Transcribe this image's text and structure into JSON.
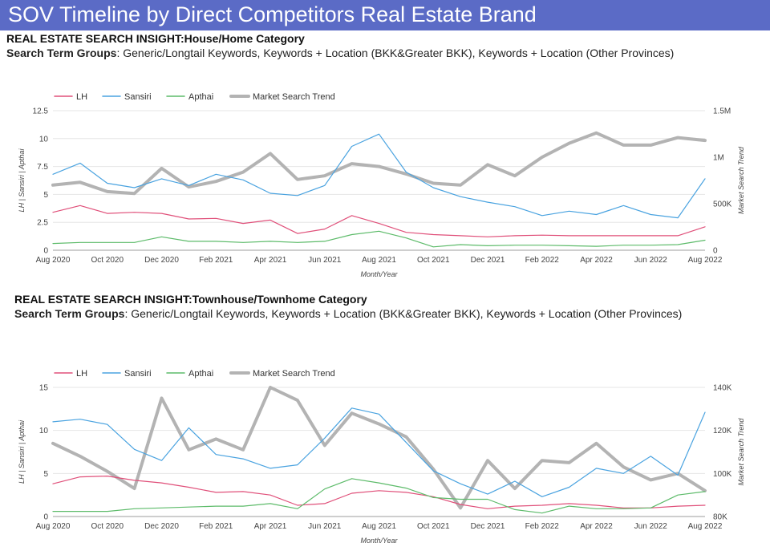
{
  "title": "SOV Timeline by Direct Competitors Real Estate Brand",
  "section1": {
    "heading": "REAL ESTATE SEARCH INSIGHT:House/Home Category",
    "groups_label": "Search Term Groups",
    "groups_text": ": Generic/Longtail Keywords, Keywords + Location (BKK&Greater BKK), Keywords + Location (Other Provinces)"
  },
  "section2": {
    "heading": "REAL ESTATE SEARCH INSIGHT:Townhouse/Townhome Category",
    "groups_label": "Search Term Groups",
    "groups_text": ": Generic/Longtail Keywords, Keywords + Location (BKK&Greater BKK), Keywords + Location (Other Provinces)"
  },
  "colors": {
    "banner": "#5b6bc6",
    "LH": "#e0507a",
    "Sansiri": "#4aa3e0",
    "Apthai": "#5dbb6a",
    "Market": "#b3b3b3"
  },
  "chart_data": [
    {
      "type": "line",
      "name": "house",
      "categories": [
        "Aug 2020",
        "Sep 2020",
        "Oct 2020",
        "Nov 2020",
        "Dec 2020",
        "Jan 2021",
        "Feb 2021",
        "Mar 2021",
        "Apr 2021",
        "May 2021",
        "Jun 2021",
        "Jul 2021",
        "Aug 2021",
        "Sep 2021",
        "Oct 2021",
        "Nov 2021",
        "Dec 2021",
        "Jan 2022",
        "Feb 2022",
        "Mar 2022",
        "Apr 2022",
        "May 2022",
        "Jun 2022",
        "Jul 2022",
        "Aug 2022"
      ],
      "tick_labels": [
        "Aug 2020",
        "Oct 2020",
        "Dec 2020",
        "Feb 2021",
        "Apr 2021",
        "Jun 2021",
        "Aug 2021",
        "Oct 2021",
        "Dec 2021",
        "Feb 2022",
        "Apr 2022",
        "Jun 2022",
        "Aug 2022"
      ],
      "xlabel": "Month/Year",
      "ylabel": "LH | Sansiri | Apthai",
      "y2label": "Market Search Trend",
      "ylim": [
        0,
        12.5
      ],
      "yticks": [
        0,
        2.5,
        5,
        7.5,
        10,
        12.5
      ],
      "ytick_labels": [
        "0",
        "2.5",
        "5",
        "7.5",
        "10",
        "12.5"
      ],
      "y2lim": [
        0,
        1500000
      ],
      "y2ticks": [
        0,
        500000,
        1000000,
        1500000
      ],
      "y2tick_labels": [
        "0",
        "500K",
        "1M",
        "1.5M"
      ],
      "series": [
        {
          "name": "LH",
          "color": "#e0507a",
          "axis": "left",
          "values": [
            3.4,
            4.0,
            3.3,
            3.4,
            3.3,
            2.8,
            2.85,
            2.4,
            2.7,
            1.5,
            1.9,
            3.1,
            2.4,
            1.6,
            1.4,
            1.3,
            1.2,
            1.3,
            1.35,
            1.3,
            1.3,
            1.3,
            1.3,
            1.3,
            2.1
          ]
        },
        {
          "name": "Sansiri",
          "color": "#4aa3e0",
          "axis": "left",
          "values": [
            6.8,
            7.8,
            6.0,
            5.6,
            6.4,
            5.8,
            6.8,
            6.3,
            5.1,
            4.9,
            5.8,
            9.3,
            10.4,
            7.0,
            5.6,
            4.8,
            4.3,
            3.9,
            3.1,
            3.5,
            3.2,
            4.0,
            3.2,
            2.9,
            6.4
          ]
        },
        {
          "name": "Apthai",
          "color": "#5dbb6a",
          "axis": "left",
          "values": [
            0.6,
            0.7,
            0.7,
            0.7,
            1.2,
            0.8,
            0.8,
            0.7,
            0.8,
            0.7,
            0.8,
            1.4,
            1.7,
            1.1,
            0.3,
            0.5,
            0.4,
            0.45,
            0.45,
            0.4,
            0.35,
            0.45,
            0.45,
            0.5,
            0.9
          ]
        },
        {
          "name": "Market Search Trend",
          "color": "#b3b3b3",
          "axis": "right",
          "values": [
            700000,
            730000,
            630000,
            610000,
            880000,
            680000,
            740000,
            840000,
            1040000,
            760000,
            800000,
            930000,
            900000,
            820000,
            720000,
            700000,
            920000,
            800000,
            1000000,
            1150000,
            1260000,
            1130000,
            1130000,
            1210000,
            1180000
          ]
        }
      ]
    },
    {
      "type": "line",
      "name": "townhouse",
      "categories": [
        "Aug 2020",
        "Sep 2020",
        "Oct 2020",
        "Nov 2020",
        "Dec 2020",
        "Jan 2021",
        "Feb 2021",
        "Mar 2021",
        "Apr 2021",
        "May 2021",
        "Jun 2021",
        "Jul 2021",
        "Aug 2021",
        "Sep 2021",
        "Oct 2021",
        "Nov 2021",
        "Dec 2021",
        "Jan 2022",
        "Feb 2022",
        "Mar 2022",
        "Apr 2022",
        "May 2022",
        "Jun 2022",
        "Jul 2022",
        "Aug 2022"
      ],
      "tick_labels": [
        "Aug 2020",
        "Oct 2020",
        "Dec 2020",
        "Feb 2021",
        "Apr 2021",
        "Jun 2021",
        "Aug 2021",
        "Oct 2021",
        "Dec 2021",
        "Feb 2022",
        "Apr 2022",
        "Jun 2022",
        "Aug 2022"
      ],
      "xlabel": "Month/Year",
      "ylabel": "LH | Sansiri | Apthai",
      "y2label": "Market Search Trend",
      "ylim": [
        0,
        15
      ],
      "yticks": [
        0,
        5,
        10,
        15
      ],
      "ytick_labels": [
        "0",
        "5",
        "10",
        "15"
      ],
      "y2lim": [
        80000,
        140000
      ],
      "y2ticks": [
        80000,
        100000,
        120000,
        140000
      ],
      "y2tick_labels": [
        "80K",
        "100K",
        "120K",
        "140K"
      ],
      "series": [
        {
          "name": "LH",
          "color": "#e0507a",
          "axis": "left",
          "values": [
            3.8,
            4.6,
            4.7,
            4.2,
            3.9,
            3.4,
            2.8,
            2.9,
            2.5,
            1.3,
            1.5,
            2.7,
            3.0,
            2.8,
            2.3,
            1.4,
            0.9,
            1.2,
            1.3,
            1.5,
            1.3,
            1.0,
            1.0,
            1.2,
            1.3
          ]
        },
        {
          "name": "Sansiri",
          "color": "#4aa3e0",
          "axis": "left",
          "values": [
            11.0,
            11.3,
            10.7,
            7.8,
            6.5,
            10.3,
            7.2,
            6.7,
            5.6,
            6.0,
            9.1,
            12.6,
            11.9,
            8.6,
            5.3,
            3.8,
            2.6,
            4.1,
            2.3,
            3.4,
            5.6,
            5.0,
            7.0,
            4.8,
            12.1
          ]
        },
        {
          "name": "Apthai",
          "color": "#5dbb6a",
          "axis": "left",
          "values": [
            0.6,
            0.6,
            0.6,
            0.9,
            1.0,
            1.1,
            1.2,
            1.2,
            1.5,
            0.9,
            3.2,
            4.4,
            3.9,
            3.3,
            2.2,
            2.0,
            2.0,
            0.8,
            0.4,
            1.2,
            0.9,
            0.9,
            1.0,
            2.5,
            2.9
          ]
        },
        {
          "name": "Market Search Trend",
          "color": "#b3b3b3",
          "axis": "right",
          "values": [
            114000,
            108000,
            101000,
            93000,
            135000,
            111000,
            116000,
            111000,
            140000,
            134000,
            113000,
            128000,
            123000,
            117000,
            102000,
            84000,
            106000,
            93000,
            106000,
            105000,
            114000,
            103000,
            97000,
            100000,
            92000
          ]
        }
      ]
    }
  ]
}
